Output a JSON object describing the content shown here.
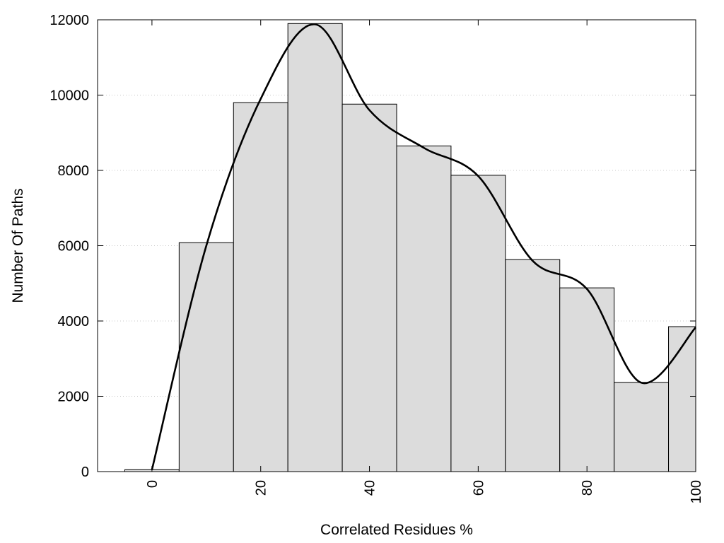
{
  "chart_data": {
    "type": "bar",
    "title": "",
    "xlabel": "Correlated Residues %",
    "ylabel": "Number Of Paths",
    "xlim": [
      -10,
      100
    ],
    "ylim": [
      0,
      12000
    ],
    "grid": true,
    "bin_width": 10,
    "bins": [
      {
        "center": 0,
        "value": 50
      },
      {
        "center": 10,
        "value": 6080
      },
      {
        "center": 20,
        "value": 9800
      },
      {
        "center": 30,
        "value": 11900
      },
      {
        "center": 40,
        "value": 9760
      },
      {
        "center": 50,
        "value": 8650
      },
      {
        "center": 60,
        "value": 7870
      },
      {
        "center": 70,
        "value": 5630
      },
      {
        "center": 80,
        "value": 4880
      },
      {
        "center": 90,
        "value": 2370
      },
      {
        "center": 100,
        "value": 3850
      }
    ],
    "smooth_curve": {
      "x": [
        0,
        10,
        20,
        30,
        40,
        50,
        60,
        70,
        80,
        90,
        100
      ],
      "y": [
        50,
        6000,
        9900,
        11880,
        9600,
        8600,
        7850,
        5600,
        4850,
        2360,
        3830
      ]
    },
    "x_ticks": [
      "0",
      "20",
      "40",
      "60",
      "80",
      "100"
    ],
    "x_tick_values": [
      0,
      20,
      40,
      60,
      80,
      100
    ],
    "y_ticks": [
      "0",
      "2000",
      "4000",
      "6000",
      "8000",
      "10000",
      "12000"
    ],
    "y_tick_values": [
      0,
      2000,
      4000,
      6000,
      8000,
      10000,
      12000
    ],
    "colors": {
      "bar_fill": "#dcdcdc",
      "bar_stroke": "#000000",
      "curve": "#000000",
      "grid": "#c8c8c8"
    }
  }
}
